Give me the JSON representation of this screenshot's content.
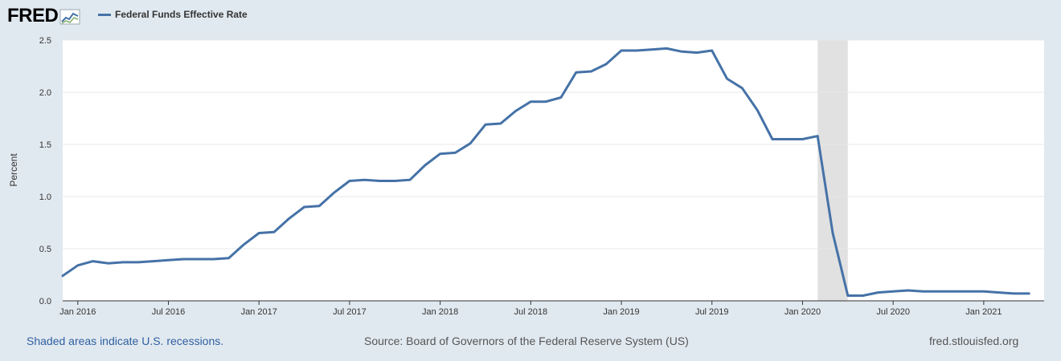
{
  "header": {
    "logo_text": "FRED",
    "logo_icon": "fred-line-graph-icon",
    "legend_label": "Federal Funds Effective Rate"
  },
  "colors": {
    "line": "#4572a7",
    "recession": "#e1e1e1",
    "background": "#e1e9f0",
    "plot_bg": "#ffffff",
    "grid": "#e8e8e8"
  },
  "chart_data": {
    "type": "line",
    "title": "",
    "xlabel": "",
    "ylabel": "Percent",
    "ylim": [
      0,
      2.5
    ],
    "yticks": [
      "0.0",
      "0.5",
      "1.0",
      "1.5",
      "2.0",
      "2.5"
    ],
    "xlim": [
      "2015-12",
      "2021-05"
    ],
    "xticks": [
      {
        "label": "Jan 2016",
        "date": "2016-01"
      },
      {
        "label": "Jul 2016",
        "date": "2016-07"
      },
      {
        "label": "Jan 2017",
        "date": "2017-01"
      },
      {
        "label": "Jul 2017",
        "date": "2017-07"
      },
      {
        "label": "Jan 2018",
        "date": "2018-01"
      },
      {
        "label": "Jul 2018",
        "date": "2018-07"
      },
      {
        "label": "Jan 2019",
        "date": "2019-01"
      },
      {
        "label": "Jul 2019",
        "date": "2019-07"
      },
      {
        "label": "Jan 2020",
        "date": "2020-01"
      },
      {
        "label": "Jul 2020",
        "date": "2020-07"
      },
      {
        "label": "Jan 2021",
        "date": "2021-01"
      }
    ],
    "grid": true,
    "legend_position": "top-left",
    "recessions": [
      {
        "start": "2020-02",
        "end": "2020-04"
      }
    ],
    "series": [
      {
        "name": "Federal Funds Effective Rate",
        "x": [
          "2015-12",
          "2016-01",
          "2016-02",
          "2016-03",
          "2016-04",
          "2016-05",
          "2016-06",
          "2016-07",
          "2016-08",
          "2016-09",
          "2016-10",
          "2016-11",
          "2016-12",
          "2017-01",
          "2017-02",
          "2017-03",
          "2017-04",
          "2017-05",
          "2017-06",
          "2017-07",
          "2017-08",
          "2017-09",
          "2017-10",
          "2017-11",
          "2017-12",
          "2018-01",
          "2018-02",
          "2018-03",
          "2018-04",
          "2018-05",
          "2018-06",
          "2018-07",
          "2018-08",
          "2018-09",
          "2018-10",
          "2018-11",
          "2018-12",
          "2019-01",
          "2019-02",
          "2019-03",
          "2019-04",
          "2019-05",
          "2019-06",
          "2019-07",
          "2019-08",
          "2019-09",
          "2019-10",
          "2019-11",
          "2019-12",
          "2020-01",
          "2020-02",
          "2020-03",
          "2020-04",
          "2020-05",
          "2020-06",
          "2020-07",
          "2020-08",
          "2020-09",
          "2020-10",
          "2020-11",
          "2020-12",
          "2021-01",
          "2021-02",
          "2021-03",
          "2021-04"
        ],
        "values": [
          0.24,
          0.34,
          0.38,
          0.36,
          0.37,
          0.37,
          0.38,
          0.39,
          0.4,
          0.4,
          0.4,
          0.41,
          0.54,
          0.65,
          0.66,
          0.79,
          0.9,
          0.91,
          1.04,
          1.15,
          1.16,
          1.15,
          1.15,
          1.16,
          1.3,
          1.41,
          1.42,
          1.51,
          1.69,
          1.7,
          1.82,
          1.91,
          1.91,
          1.95,
          2.19,
          2.2,
          2.27,
          2.4,
          2.4,
          2.41,
          2.42,
          2.39,
          2.38,
          2.4,
          2.13,
          2.04,
          1.83,
          1.55,
          1.55,
          1.55,
          1.58,
          0.65,
          0.05,
          0.05,
          0.08,
          0.09,
          0.1,
          0.09,
          0.09,
          0.09,
          0.09,
          0.09,
          0.08,
          0.07,
          0.07
        ]
      }
    ]
  },
  "footer": {
    "left": "Shaded areas indicate U.S. recessions.",
    "center": "Source: Board of Governors of the Federal Reserve System (US)",
    "right": "fred.stlouisfed.org"
  }
}
